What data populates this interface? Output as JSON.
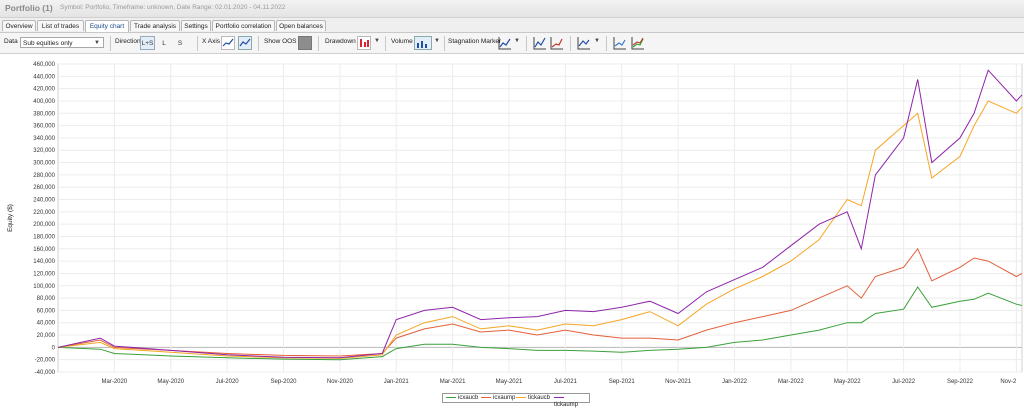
{
  "titlebar": {
    "title": "Portfolio (1)",
    "meta": "Symbol: Portfolio, Timeframe: unknown, Date Range: 02.01.2020 - 04.11.2022"
  },
  "tabs": [
    {
      "label": "Overview"
    },
    {
      "label": "List of trades"
    },
    {
      "label": "Equity chart",
      "active": true
    },
    {
      "label": "Trade analysis"
    },
    {
      "label": "Settings"
    },
    {
      "label": "Portfolio correlation"
    },
    {
      "label": "Open balances"
    }
  ],
  "toolbar": {
    "data_label": "Data",
    "data_value": "Sub equities only",
    "direction_label": "Direction",
    "direction_options": [
      "L+S",
      "L",
      "S"
    ],
    "x_axis_label": "X Axis",
    "x_axis_icons": [
      "trades",
      "time"
    ],
    "show_oos_label": "Show OOS",
    "drawdown_label": "Drawdown",
    "volume_label": "Volume",
    "stagnation_label": "Stagnation Marker"
  },
  "chart_data": {
    "type": "line",
    "ylabel": "Equity ($)",
    "ylim": [
      -40000,
      460000
    ],
    "yticks": [
      "460,000",
      "440,000",
      "420,000",
      "400,000",
      "380,000",
      "360,000",
      "340,000",
      "320,000",
      "300,000",
      "280,000",
      "260,000",
      "240,000",
      "220,000",
      "200,000",
      "180,000",
      "160,000",
      "140,000",
      "120,000",
      "100,000",
      "80,000",
      "60,000",
      "40,000",
      "20,000",
      "0",
      "-20,000",
      "-40,000"
    ],
    "x_labels": [
      "Mar-2020",
      "May-2020",
      "Jul-2020",
      "Sep-2020",
      "Nov-2020",
      "Jan-2021",
      "Mar-2021",
      "May-2021",
      "Jul-2021",
      "Sep-2021",
      "Nov-2021",
      "Jan-2022",
      "Mar-2022",
      "May-2022",
      "Jul-2022",
      "Sep-2022",
      "Nov-2"
    ],
    "x_label_months": [
      2,
      4,
      6,
      8,
      10,
      12,
      14,
      16,
      18,
      20,
      22,
      24,
      26,
      28,
      30,
      32,
      34
    ],
    "x_range": [
      0,
      34.2
    ],
    "grid": true,
    "legend_position": "bottom-center",
    "series": [
      {
        "name": "icxaucb",
        "color": "#3aa13a",
        "x": [
          0,
          1.5,
          2,
          4,
          6,
          8,
          10,
          11.5,
          12,
          13,
          14,
          15,
          16,
          17,
          18,
          19,
          20,
          21,
          22,
          23,
          24,
          25,
          26,
          27,
          28,
          28.5,
          29,
          30,
          30.5,
          31,
          32,
          32.5,
          33,
          34,
          34.2
        ],
        "y": [
          0,
          -3000,
          -10000,
          -14000,
          -17000,
          -19000,
          -20000,
          -15000,
          -2000,
          5000,
          5000,
          0,
          -2000,
          -5000,
          -5000,
          -6000,
          -8000,
          -5000,
          -3000,
          0,
          8000,
          12000,
          20000,
          28000,
          40000,
          40000,
          55000,
          62000,
          98000,
          65000,
          75000,
          78000,
          88000,
          70000,
          68000
        ]
      },
      {
        "name": "icxaump",
        "color": "#e4603a",
        "x": [
          0,
          1.5,
          2,
          4,
          6,
          8,
          10,
          11.5,
          12,
          13,
          14,
          15,
          16,
          17,
          18,
          19,
          20,
          21,
          22,
          23,
          24,
          25,
          26,
          27,
          28,
          28.5,
          29,
          30,
          30.5,
          31,
          32,
          32.5,
          33,
          34,
          34.2
        ],
        "y": [
          0,
          12000,
          0,
          -5000,
          -10000,
          -13000,
          -14000,
          -10000,
          15000,
          30000,
          38000,
          25000,
          28000,
          20000,
          28000,
          20000,
          15000,
          15000,
          12000,
          28000,
          40000,
          50000,
          60000,
          80000,
          100000,
          80000,
          115000,
          130000,
          160000,
          108000,
          130000,
          145000,
          140000,
          115000,
          120000
        ]
      },
      {
        "name": "tickaucb",
        "color": "#f5a623",
        "x": [
          0,
          1.5,
          2,
          4,
          6,
          8,
          10,
          11.5,
          12,
          13,
          14,
          15,
          16,
          17,
          18,
          19,
          20,
          21,
          22,
          23,
          24,
          25,
          26,
          27,
          28,
          28.5,
          29,
          30,
          30.5,
          31,
          32,
          32.5,
          33,
          34,
          34.2
        ],
        "y": [
          0,
          8000,
          -2000,
          -8000,
          -14000,
          -17000,
          -18000,
          -12000,
          20000,
          40000,
          50000,
          30000,
          35000,
          28000,
          38000,
          35000,
          45000,
          58000,
          35000,
          70000,
          95000,
          115000,
          140000,
          175000,
          240000,
          230000,
          320000,
          360000,
          380000,
          275000,
          310000,
          360000,
          400000,
          380000,
          390000
        ]
      },
      {
        "name": "tickaump",
        "color": "#8e24aa",
        "x": [
          0,
          1.5,
          2,
          4,
          6,
          8,
          10,
          11.5,
          12,
          13,
          14,
          15,
          16,
          17,
          18,
          19,
          20,
          21,
          22,
          23,
          24,
          25,
          26,
          27,
          28,
          28.5,
          29,
          30,
          30.5,
          31,
          32,
          32.5,
          33,
          34,
          34.2
        ],
        "y": [
          0,
          15000,
          2000,
          -5000,
          -12000,
          -16000,
          -17000,
          -10000,
          45000,
          60000,
          65000,
          45000,
          48000,
          50000,
          60000,
          58000,
          65000,
          75000,
          55000,
          90000,
          110000,
          130000,
          165000,
          200000,
          220000,
          160000,
          280000,
          340000,
          435000,
          300000,
          340000,
          380000,
          450000,
          400000,
          410000
        ]
      }
    ]
  }
}
